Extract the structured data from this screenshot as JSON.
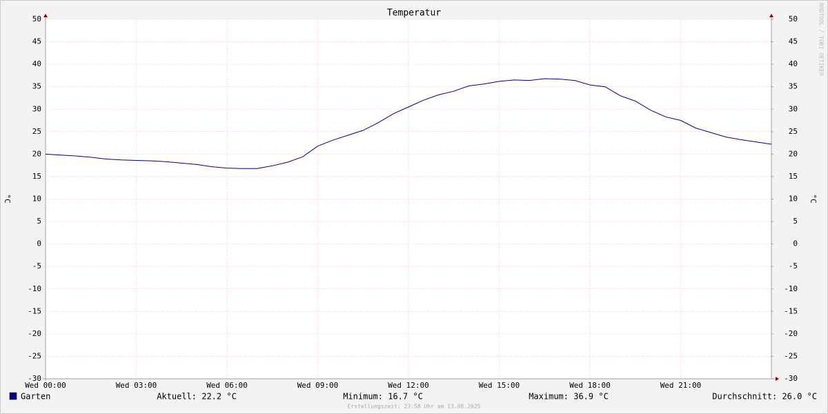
{
  "chart_data": {
    "type": "line",
    "title": "Temperatur",
    "y_label": "°C",
    "y2_label": "°C",
    "x": [
      0,
      0.5,
      1,
      1.5,
      2,
      2.5,
      3,
      3.5,
      4,
      4.5,
      5,
      5.5,
      6,
      6.5,
      7,
      7.5,
      8,
      8.5,
      9,
      9.5,
      10,
      10.5,
      11,
      11.5,
      12,
      12.5,
      13,
      13.5,
      14,
      14.5,
      15,
      15.5,
      16,
      16.5,
      17,
      17.5,
      18,
      18.5,
      19,
      19.5,
      20,
      20.5,
      21,
      21.5,
      22,
      22.5,
      23,
      23.5,
      24
    ],
    "xlim": [
      0,
      24
    ],
    "xticks": [
      {
        "value": 0,
        "label": "Wed 00:00"
      },
      {
        "value": 3,
        "label": "Wed 03:00"
      },
      {
        "value": 6,
        "label": "Wed 06:00"
      },
      {
        "value": 9,
        "label": "Wed 09:00"
      },
      {
        "value": 12,
        "label": "Wed 12:00"
      },
      {
        "value": 15,
        "label": "Wed 15:00"
      },
      {
        "value": 18,
        "label": "Wed 18:00"
      },
      {
        "value": 21,
        "label": "Wed 21:00"
      }
    ],
    "ylim": [
      -30,
      50
    ],
    "yticks": [
      -30,
      -25,
      -20,
      -15,
      -10,
      -5,
      0,
      5,
      10,
      15,
      20,
      25,
      30,
      35,
      40,
      45,
      50
    ],
    "y2lim": [
      -30,
      50
    ],
    "y2ticks": [
      -30,
      -25,
      -20,
      -15,
      -10,
      -5,
      0,
      5,
      10,
      15,
      20,
      25,
      30,
      35,
      40,
      45,
      50
    ],
    "grid": true,
    "series": [
      {
        "name": "Garten",
        "color": "#00008b",
        "values": [
          20.0,
          19.8,
          19.6,
          19.3,
          18.9,
          18.7,
          18.6,
          18.5,
          18.3,
          18.0,
          17.7,
          17.2,
          16.9,
          16.8,
          16.8,
          17.4,
          18.2,
          19.4,
          21.8,
          23.1,
          24.2,
          25.3,
          27.0,
          29.0,
          30.5,
          32.0,
          33.2,
          34.0,
          35.2,
          35.6,
          36.2,
          36.5,
          36.4,
          36.8,
          36.7,
          36.4,
          35.4,
          35.0,
          33.0,
          31.8,
          29.8,
          28.3,
          27.5,
          25.8,
          24.8,
          23.8,
          23.2,
          22.7,
          22.2
        ]
      }
    ],
    "stats": [
      "Aktuell: 22.2 °C",
      "Minimum: 16.7 °C",
      "Maximum: 36.9 °C",
      "Durchschnitt: 26.0 °C"
    ],
    "footer": "Erstellungszeit: 23:58 Uhr am 13.08.2025",
    "watermark": "RRDTOOL / TOBI OETIKER"
  }
}
